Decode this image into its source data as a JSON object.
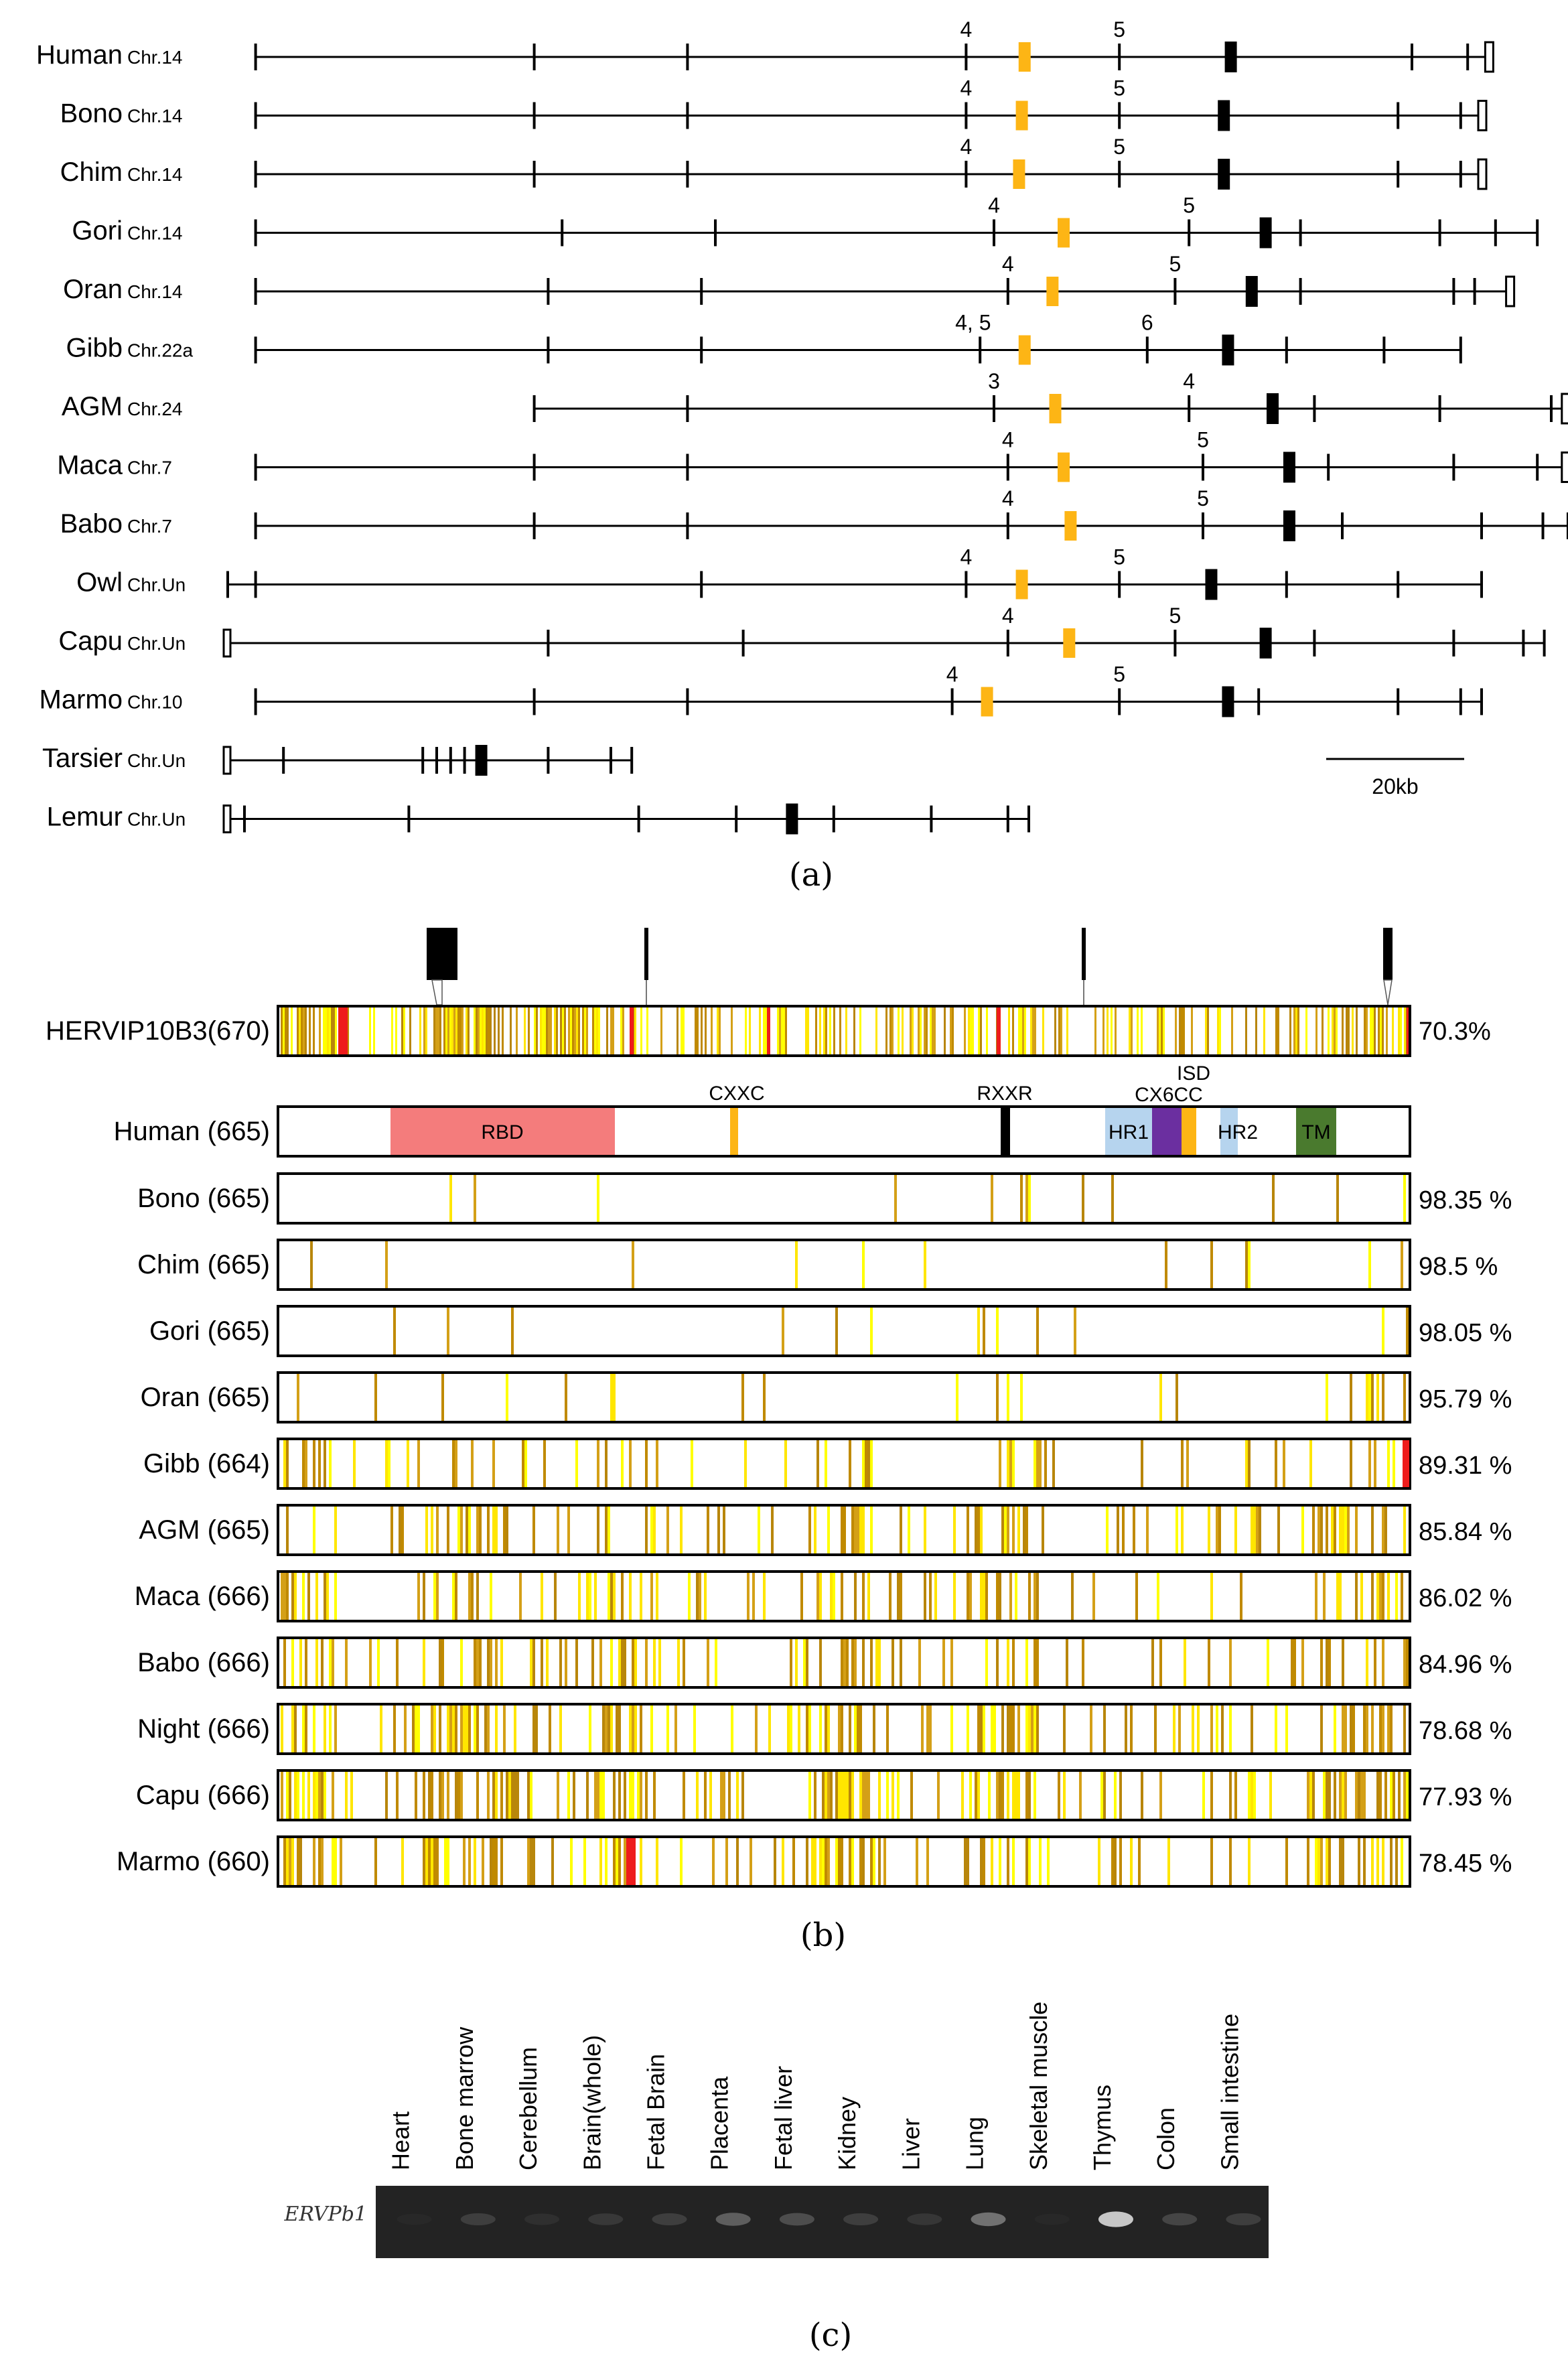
{
  "panel_a": {
    "caption": "(a)",
    "scale_label": "20kb",
    "rows": [
      {
        "sp": "Human",
        "chr": "Chr.14",
        "start": 0.02,
        "end": 0.905,
        "exons": [
          0.02,
          0.22,
          0.33,
          0.53,
          0.64,
          0.85,
          0.89,
          0.905
        ],
        "lab1": {
          "t": "4",
          "p": 0.53
        },
        "lab2": {
          "t": "5",
          "p": 0.64
        },
        "orange": 0.572,
        "black": 0.72,
        "endbox": true
      },
      {
        "sp": "Bono",
        "chr": "Chr.14",
        "start": 0.02,
        "end": 0.9,
        "exons": [
          0.02,
          0.22,
          0.33,
          0.53,
          0.64,
          0.84,
          0.885
        ],
        "lab1": {
          "t": "4",
          "p": 0.53
        },
        "lab2": {
          "t": "5",
          "p": 0.64
        },
        "orange": 0.57,
        "black": 0.715,
        "endbox": true
      },
      {
        "sp": "Chim",
        "chr": "Chr.14",
        "start": 0.02,
        "end": 0.9,
        "exons": [
          0.02,
          0.22,
          0.33,
          0.53,
          0.64,
          0.84,
          0.885
        ],
        "lab1": {
          "t": "4",
          "p": 0.53
        },
        "lab2": {
          "t": "5",
          "p": 0.64
        },
        "orange": 0.568,
        "black": 0.715,
        "endbox": true
      },
      {
        "sp": "Gori",
        "chr": "Chr.14",
        "start": 0.02,
        "end": 0.94,
        "exons": [
          0.02,
          0.24,
          0.35,
          0.55,
          0.69,
          0.77,
          0.87,
          0.91,
          0.94
        ],
        "lab1": {
          "t": "4",
          "p": 0.55
        },
        "lab2": {
          "t": "5",
          "p": 0.69
        },
        "orange": 0.6,
        "black": 0.745,
        "endbox": false
      },
      {
        "sp": "Oran",
        "chr": "Chr.14",
        "start": 0.02,
        "end": 0.92,
        "exons": [
          0.02,
          0.23,
          0.34,
          0.56,
          0.68,
          0.77,
          0.88,
          0.895
        ],
        "lab1": {
          "t": "4",
          "p": 0.56
        },
        "lab2": {
          "t": "5",
          "p": 0.68
        },
        "orange": 0.592,
        "black": 0.735,
        "endbox": true
      },
      {
        "sp": "Gibb",
        "chr": "Chr.22a",
        "start": 0.02,
        "end": 0.885,
        "exons": [
          0.02,
          0.23,
          0.34,
          0.54,
          0.66,
          0.76,
          0.83,
          0.885
        ],
        "lab1": {
          "t": "4, 5",
          "p": 0.535
        },
        "lab2": {
          "t": "6",
          "p": 0.66
        },
        "orange": 0.572,
        "black": 0.718,
        "endbox": false
      },
      {
        "sp": "AGM",
        "chr": "Chr.24",
        "start": 0.22,
        "end": 0.96,
        "exons": [
          0.22,
          0.33,
          0.55,
          0.69,
          0.78,
          0.87,
          0.95
        ],
        "lab1": {
          "t": "3",
          "p": 0.55
        },
        "lab2": {
          "t": "4",
          "p": 0.69
        },
        "orange": 0.594,
        "black": 0.75,
        "endbox": true
      },
      {
        "sp": "Maca",
        "chr": "Chr.7",
        "start": 0.02,
        "end": 0.96,
        "exons": [
          0.02,
          0.22,
          0.33,
          0.56,
          0.7,
          0.79,
          0.88,
          0.94
        ],
        "lab1": {
          "t": "4",
          "p": 0.56
        },
        "lab2": {
          "t": "5",
          "p": 0.7
        },
        "orange": 0.6,
        "black": 0.762,
        "endbox": true
      },
      {
        "sp": "Babo",
        "chr": "Chr.7",
        "start": 0.02,
        "end": 0.962,
        "exons": [
          0.02,
          0.22,
          0.33,
          0.56,
          0.7,
          0.8,
          0.9,
          0.944,
          0.962
        ],
        "lab1": {
          "t": "4",
          "p": 0.56
        },
        "lab2": {
          "t": "5",
          "p": 0.7
        },
        "orange": 0.605,
        "black": 0.762,
        "endbox": false
      },
      {
        "sp": "Owl",
        "chr": "Chr.Un",
        "start": 0.0,
        "end": 0.9,
        "exons": [
          0.0,
          0.02,
          0.34,
          0.53,
          0.64,
          0.76,
          0.84,
          0.9
        ],
        "lab1": {
          "t": "4",
          "p": 0.53
        },
        "lab2": {
          "t": "5",
          "p": 0.64
        },
        "orange": 0.57,
        "black": 0.706,
        "endbox": false
      },
      {
        "sp": "Capu",
        "chr": "Chr.Un",
        "start": 0.0,
        "end": 0.945,
        "exons": [
          0.23,
          0.37,
          0.56,
          0.68,
          0.78,
          0.88,
          0.93,
          0.945
        ],
        "lab1": {
          "t": "4",
          "p": 0.56
        },
        "lab2": {
          "t": "5",
          "p": 0.68
        },
        "orange": 0.604,
        "black": 0.745,
        "endbox": false,
        "startbox": true
      },
      {
        "sp": "Marmo",
        "chr": "Chr.10",
        "start": 0.02,
        "end": 0.9,
        "exons": [
          0.02,
          0.22,
          0.33,
          0.52,
          0.64,
          0.74,
          0.84,
          0.885,
          0.9
        ],
        "lab1": {
          "t": "4",
          "p": 0.52
        },
        "lab2": {
          "t": "5",
          "p": 0.64
        },
        "orange": 0.545,
        "black": 0.718,
        "endbox": false
      },
      {
        "sp": "Tarsier",
        "chr": "Chr.Un",
        "start": 0.0,
        "end": 0.29,
        "exons": [
          0.0,
          0.04,
          0.14,
          0.15,
          0.16,
          0.17,
          0.23,
          0.275,
          0.29
        ],
        "black": 0.182,
        "endbox": false,
        "startbox": true
      },
      {
        "sp": "Lemur",
        "chr": "Chr.Un",
        "start": 0.0,
        "end": 0.575,
        "exons": [
          0.0,
          0.012,
          0.13,
          0.295,
          0.365,
          0.435,
          0.505,
          0.56,
          0.575
        ],
        "black": 0.405,
        "endbox": false,
        "startbox": true
      }
    ]
  },
  "panel_b": {
    "caption": "(b)",
    "herv": {
      "label": "HERVIP10B3(670)",
      "pct": "70.3%"
    },
    "domains": {
      "cxxc": "CXXC",
      "rxxr": "RXXR",
      "isd": "ISD",
      "cx6cc": "CX6CC",
      "rbd": "RBD",
      "hr1": "HR1",
      "hr2": "HR2",
      "tm": "TM"
    },
    "human": {
      "label": "Human  (665)"
    },
    "tracks": [
      {
        "label": "Bono  (665)",
        "pct": "98.35 %",
        "density": 0.02,
        "seed": 11
      },
      {
        "label": "Chim  (665)",
        "pct": "98.5 %",
        "density": 0.018,
        "seed": 23
      },
      {
        "label": "Gori  (665)",
        "pct": "98.05 %",
        "density": 0.022,
        "seed": 37
      },
      {
        "label": "Oran  (665)",
        "pct": "95.79 %",
        "density": 0.05,
        "seed": 41
      },
      {
        "label": "Gibb  (664)",
        "pct": "89.31 %",
        "density": 0.11,
        "seed": 53
      },
      {
        "label": "AGM  (665)",
        "pct": "85.84 %",
        "density": 0.15,
        "seed": 61
      },
      {
        "label": "Maca  (666)",
        "pct": "86.02 %",
        "density": 0.15,
        "seed": 71
      },
      {
        "label": "Babo  (666)",
        "pct": "84.96 %",
        "density": 0.16,
        "seed": 83
      },
      {
        "label": "Night  (666)",
        "pct": "78.68 %",
        "density": 0.22,
        "seed": 97
      },
      {
        "label": "Capu  (666)",
        "pct": "77.93 %",
        "density": 0.23,
        "seed": 101
      },
      {
        "label": "Marmo  (660)",
        "pct": "78.45 %",
        "density": 0.22,
        "seed": 113
      }
    ]
  },
  "panel_c": {
    "caption": "(c)",
    "gel_label": "ERVPb1",
    "tissues": [
      {
        "name": "Heart",
        "band": 0.05
      },
      {
        "name": "Bone marrow",
        "band": 0.25
      },
      {
        "name": "Cerebellum",
        "band": 0.12
      },
      {
        "name": "Brain(whole)",
        "band": 0.2
      },
      {
        "name": "Fetal Brain",
        "band": 0.25
      },
      {
        "name": "Placenta",
        "band": 0.45
      },
      {
        "name": "Fetal liver",
        "band": 0.35
      },
      {
        "name": "Kidney",
        "band": 0.25
      },
      {
        "name": "Liver",
        "band": 0.18
      },
      {
        "name": "Lung",
        "band": 0.55
      },
      {
        "name": "Skeletal muscle",
        "band": 0.05
      },
      {
        "name": "Thymus",
        "band": 0.9
      },
      {
        "name": "Colon",
        "band": 0.3
      },
      {
        "name": "Small intestine",
        "band": 0.25
      }
    ]
  }
}
